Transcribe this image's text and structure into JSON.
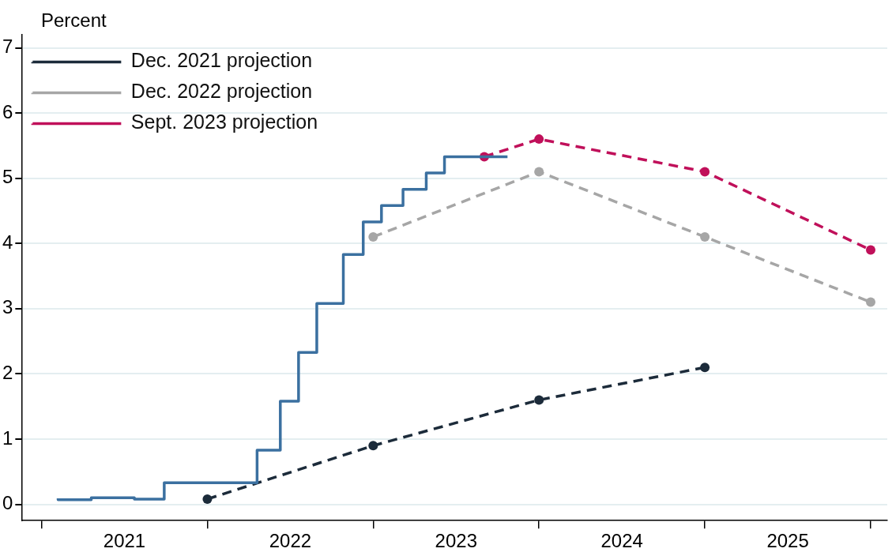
{
  "chart_data": {
    "type": "line",
    "ylabel": "Percent",
    "xlim": [
      2020.88,
      2026.1
    ],
    "ylim": [
      -0.25,
      7.2
    ],
    "xticks": [
      {
        "value": 2021,
        "label": null
      },
      {
        "value": 2021.5,
        "label": "2021"
      },
      {
        "value": 2022,
        "label": null
      },
      {
        "value": 2022.5,
        "label": "2022"
      },
      {
        "value": 2023,
        "label": null
      },
      {
        "value": 2023.5,
        "label": "2023"
      },
      {
        "value": 2024,
        "label": null
      },
      {
        "value": 2024.5,
        "label": "2024"
      },
      {
        "value": 2025,
        "label": null
      },
      {
        "value": 2025.5,
        "label": "2025"
      },
      {
        "value": 2026,
        "label": null
      }
    ],
    "yticks": [
      0,
      1,
      2,
      3,
      4,
      5,
      6,
      7
    ],
    "grid": "y",
    "legend": "top left",
    "series": [
      {
        "type": "step",
        "color": "#3b70a0",
        "marker": "none",
        "line_style": "solid",
        "x": [
          2021.1,
          2021.3,
          2021.56,
          2021.74,
          2022.3,
          2022.44,
          2022.55,
          2022.66,
          2022.82,
          2022.94,
          2023.05,
          2023.18,
          2023.32,
          2023.43,
          2023.67,
          2023.81
        ],
        "values": [
          0.09,
          0.07,
          0.1,
          0.08,
          0.33,
          0.83,
          1.58,
          2.33,
          3.08,
          3.83,
          4.33,
          4.58,
          4.83,
          5.08,
          5.33,
          5.33
        ]
      },
      {
        "name": "Dec. 2021 projection",
        "type": "line",
        "color": "#1c2b3a",
        "marker": "circle",
        "line_style": "dashed",
        "x": [
          2022,
          2023,
          2024,
          2025
        ],
        "values": [
          0.08,
          0.9,
          1.6,
          2.1
        ]
      },
      {
        "name": "Dec. 2022 projection",
        "type": "line",
        "color": "#a6a6a6",
        "marker": "circle",
        "line_style": "dashed",
        "x": [
          2023,
          2024,
          2025,
          2026
        ],
        "values": [
          4.1,
          5.1,
          4.1,
          3.1
        ]
      },
      {
        "name": "Sept. 2023 projection",
        "type": "line",
        "color": "#c0105a",
        "marker": "circle",
        "line_style": "dashed",
        "x": [
          2023.67,
          2024,
          2025,
          2026
        ],
        "values": [
          5.33,
          5.6,
          5.1,
          3.9
        ]
      }
    ]
  }
}
